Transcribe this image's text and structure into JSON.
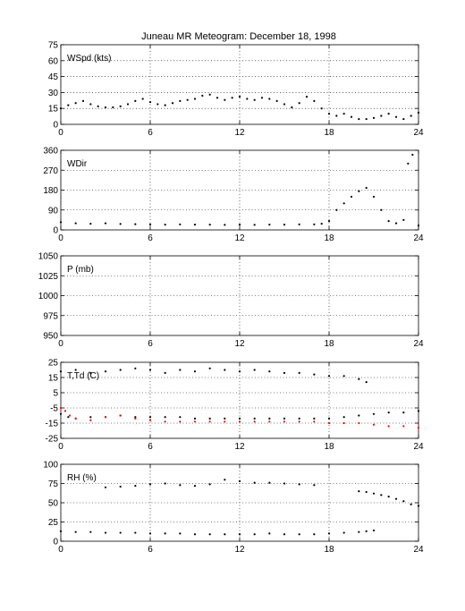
{
  "title": "Juneau MR Meteogram:   December 18, 1998",
  "chart_data": [
    {
      "id": "wspd",
      "type": "scatter",
      "label": "WSpd (kts)",
      "xlim": [
        0,
        24
      ],
      "ylim": [
        0,
        75
      ],
      "xticks": [
        0,
        6,
        12,
        18,
        24
      ],
      "yticks": [
        0,
        15,
        30,
        45,
        60,
        75
      ],
      "grid": true,
      "series": [
        {
          "color": "#000000",
          "points": [
            [
              0.0,
              15
            ],
            [
              0.5,
              18
            ],
            [
              1.0,
              20
            ],
            [
              1.5,
              22
            ],
            [
              2.0,
              19
            ],
            [
              2.5,
              17
            ],
            [
              3.0,
              16
            ],
            [
              3.5,
              16
            ],
            [
              4.0,
              17
            ],
            [
              4.5,
              19
            ],
            [
              5.0,
              22
            ],
            [
              5.5,
              24
            ],
            [
              6.0,
              21
            ],
            [
              6.5,
              19
            ],
            [
              7.0,
              18
            ],
            [
              7.5,
              20
            ],
            [
              8.0,
              22
            ],
            [
              8.5,
              23
            ],
            [
              9.0,
              24
            ],
            [
              9.5,
              27
            ],
            [
              10.0,
              28
            ],
            [
              10.5,
              25
            ],
            [
              11.0,
              23
            ],
            [
              11.5,
              25
            ],
            [
              12.0,
              26
            ],
            [
              12.5,
              24
            ],
            [
              13.0,
              23
            ],
            [
              13.5,
              25
            ],
            [
              14.0,
              24
            ],
            [
              14.5,
              22
            ],
            [
              15.0,
              19
            ],
            [
              15.5,
              16
            ],
            [
              16.0,
              20
            ],
            [
              16.5,
              26
            ],
            [
              17.0,
              22
            ],
            [
              17.5,
              15
            ],
            [
              18.0,
              10
            ],
            [
              18.5,
              8
            ],
            [
              19.0,
              10
            ],
            [
              19.5,
              7
            ],
            [
              20.0,
              5
            ],
            [
              20.5,
              5
            ],
            [
              21.0,
              6
            ],
            [
              21.5,
              8
            ],
            [
              22.0,
              10
            ],
            [
              22.5,
              7
            ],
            [
              23.0,
              5
            ],
            [
              23.5,
              8
            ],
            [
              24.0,
              11
            ]
          ]
        }
      ]
    },
    {
      "id": "wdir",
      "type": "scatter",
      "label": "WDir",
      "xlim": [
        0,
        24
      ],
      "ylim": [
        0,
        360
      ],
      "xticks": [
        0,
        6,
        12,
        18,
        24
      ],
      "yticks": [
        0,
        90,
        180,
        270,
        360
      ],
      "grid": true,
      "series": [
        {
          "color": "#000000",
          "points": [
            [
              0.0,
              35
            ],
            [
              1.0,
              30
            ],
            [
              2.0,
              28
            ],
            [
              3.0,
              30
            ],
            [
              4.0,
              27
            ],
            [
              5.0,
              26
            ],
            [
              6.0,
              25
            ],
            [
              7.0,
              24
            ],
            [
              8.0,
              25
            ],
            [
              9.0,
              24
            ],
            [
              10.0,
              24
            ],
            [
              11.0,
              23
            ],
            [
              12.0,
              24
            ],
            [
              13.0,
              23
            ],
            [
              14.0,
              24
            ],
            [
              15.0,
              24
            ],
            [
              16.0,
              25
            ],
            [
              17.0,
              25
            ],
            [
              17.5,
              28
            ],
            [
              18.0,
              40
            ],
            [
              18.5,
              90
            ],
            [
              19.0,
              120
            ],
            [
              19.5,
              150
            ],
            [
              20.0,
              175
            ],
            [
              20.5,
              190
            ],
            [
              21.0,
              150
            ],
            [
              21.5,
              90
            ],
            [
              22.0,
              40
            ],
            [
              22.5,
              30
            ],
            [
              23.0,
              45
            ],
            [
              23.3,
              300
            ],
            [
              23.6,
              340
            ],
            [
              24.0,
              20
            ]
          ]
        }
      ]
    },
    {
      "id": "pres",
      "type": "scatter",
      "label": "P (mb)",
      "xlim": [
        0,
        24
      ],
      "ylim": [
        950,
        1050
      ],
      "xticks": [
        0,
        6,
        12,
        18,
        24
      ],
      "yticks": [
        950,
        975,
        1000,
        1025,
        1050
      ],
      "grid": true,
      "series": []
    },
    {
      "id": "temp",
      "type": "scatter",
      "label": "T,Td (C)",
      "xlim": [
        0,
        24
      ],
      "ylim": [
        -25,
        25
      ],
      "xticks": [
        0,
        6,
        12,
        18,
        24
      ],
      "yticks": [
        -25,
        -15,
        -5,
        5,
        15,
        25
      ],
      "grid": true,
      "series": [
        {
          "color": "#000000",
          "points": [
            [
              0.0,
              19
            ],
            [
              1.0,
              20
            ],
            [
              2.0,
              18
            ],
            [
              3.0,
              19
            ],
            [
              4.0,
              20
            ],
            [
              5.0,
              21
            ],
            [
              6.0,
              20
            ],
            [
              7.0,
              18
            ],
            [
              8.0,
              20
            ],
            [
              9.0,
              19
            ],
            [
              10.0,
              21
            ],
            [
              11.0,
              20
            ],
            [
              12.0,
              19
            ],
            [
              13.0,
              20
            ],
            [
              14.0,
              19
            ],
            [
              15.0,
              18
            ],
            [
              16.0,
              18
            ],
            [
              17.0,
              17
            ],
            [
              18.0,
              16
            ],
            [
              19.0,
              16
            ],
            [
              20.0,
              14
            ],
            [
              20.5,
              12
            ]
          ]
        },
        {
          "color": "#000000",
          "points": [
            [
              0.0,
              -9
            ],
            [
              0.5,
              -11
            ],
            [
              1.0,
              -12
            ],
            [
              2.0,
              -11
            ],
            [
              3.0,
              -11
            ],
            [
              4.0,
              -10
            ],
            [
              5.0,
              -11
            ],
            [
              6.0,
              -11
            ],
            [
              7.0,
              -11
            ],
            [
              8.0,
              -11
            ],
            [
              9.0,
              -12
            ],
            [
              10.0,
              -12
            ],
            [
              11.0,
              -12
            ],
            [
              12.0,
              -12
            ],
            [
              13.0,
              -12
            ],
            [
              14.0,
              -12
            ],
            [
              15.0,
              -12
            ],
            [
              16.0,
              -12
            ],
            [
              17.0,
              -12
            ],
            [
              18.0,
              -12
            ],
            [
              19.0,
              -11
            ],
            [
              20.0,
              -10
            ],
            [
              21.0,
              -9
            ],
            [
              22.0,
              -8
            ],
            [
              23.0,
              -8
            ],
            [
              24.0,
              -7
            ]
          ]
        },
        {
          "color": "#ff0000",
          "points": [
            [
              0.0,
              -5
            ],
            [
              0.3,
              -7
            ],
            [
              0.6,
              -10
            ],
            [
              1.0,
              -12
            ],
            [
              2.0,
              -13
            ],
            [
              3.0,
              -11
            ],
            [
              4.0,
              -10
            ],
            [
              5.0,
              -12
            ],
            [
              6.0,
              -13
            ],
            [
              7.0,
              -14
            ],
            [
              8.0,
              -14
            ],
            [
              9.0,
              -14
            ],
            [
              10.0,
              -14
            ],
            [
              11.0,
              -14
            ],
            [
              12.0,
              -14
            ],
            [
              13.0,
              -14
            ],
            [
              14.0,
              -14
            ],
            [
              15.0,
              -14
            ],
            [
              16.0,
              -14
            ],
            [
              17.0,
              -14
            ],
            [
              18.0,
              -15
            ],
            [
              19.0,
              -15
            ],
            [
              20.0,
              -15
            ],
            [
              21.0,
              -16
            ],
            [
              22.0,
              -17
            ],
            [
              23.0,
              -17
            ],
            [
              24.0,
              -18
            ]
          ]
        }
      ]
    },
    {
      "id": "rh",
      "type": "scatter",
      "label": "RH (%)",
      "xlim": [
        0,
        24
      ],
      "ylim": [
        0,
        100
      ],
      "xticks": [
        0,
        6,
        12,
        18,
        24
      ],
      "yticks": [
        0,
        25,
        50,
        75,
        100
      ],
      "grid": true,
      "series": [
        {
          "color": "#000000",
          "points": [
            [
              3.0,
              70
            ],
            [
              4.0,
              71
            ],
            [
              5.0,
              72
            ],
            [
              6.0,
              74
            ],
            [
              7.0,
              75
            ],
            [
              8.0,
              73
            ],
            [
              9.0,
              72
            ],
            [
              10.0,
              74
            ],
            [
              11.0,
              80
            ],
            [
              12.0,
              78
            ],
            [
              13.0,
              76
            ],
            [
              14.0,
              76
            ],
            [
              15.0,
              75
            ],
            [
              16.0,
              74
            ],
            [
              17.0,
              73
            ],
            [
              20.0,
              65
            ],
            [
              20.5,
              64
            ],
            [
              21.0,
              62
            ],
            [
              21.5,
              60
            ],
            [
              22.0,
              58
            ],
            [
              22.5,
              55
            ],
            [
              23.0,
              52
            ],
            [
              23.5,
              48
            ],
            [
              24.0,
              46
            ]
          ]
        },
        {
          "color": "#000000",
          "points": [
            [
              0.0,
              13
            ],
            [
              1.0,
              12
            ],
            [
              2.0,
              12
            ],
            [
              3.0,
              11
            ],
            [
              4.0,
              11
            ],
            [
              5.0,
              11
            ],
            [
              6.0,
              10
            ],
            [
              7.0,
              10
            ],
            [
              8.0,
              10
            ],
            [
              9.0,
              9
            ],
            [
              10.0,
              9
            ],
            [
              11.0,
              9
            ],
            [
              12.0,
              9
            ],
            [
              13.0,
              9
            ],
            [
              14.0,
              10
            ],
            [
              15.0,
              9
            ],
            [
              16.0,
              9
            ],
            [
              17.0,
              9
            ],
            [
              18.0,
              10
            ],
            [
              19.0,
              11
            ],
            [
              20.0,
              12
            ],
            [
              20.5,
              13
            ],
            [
              21.0,
              14
            ]
          ]
        }
      ]
    }
  ]
}
